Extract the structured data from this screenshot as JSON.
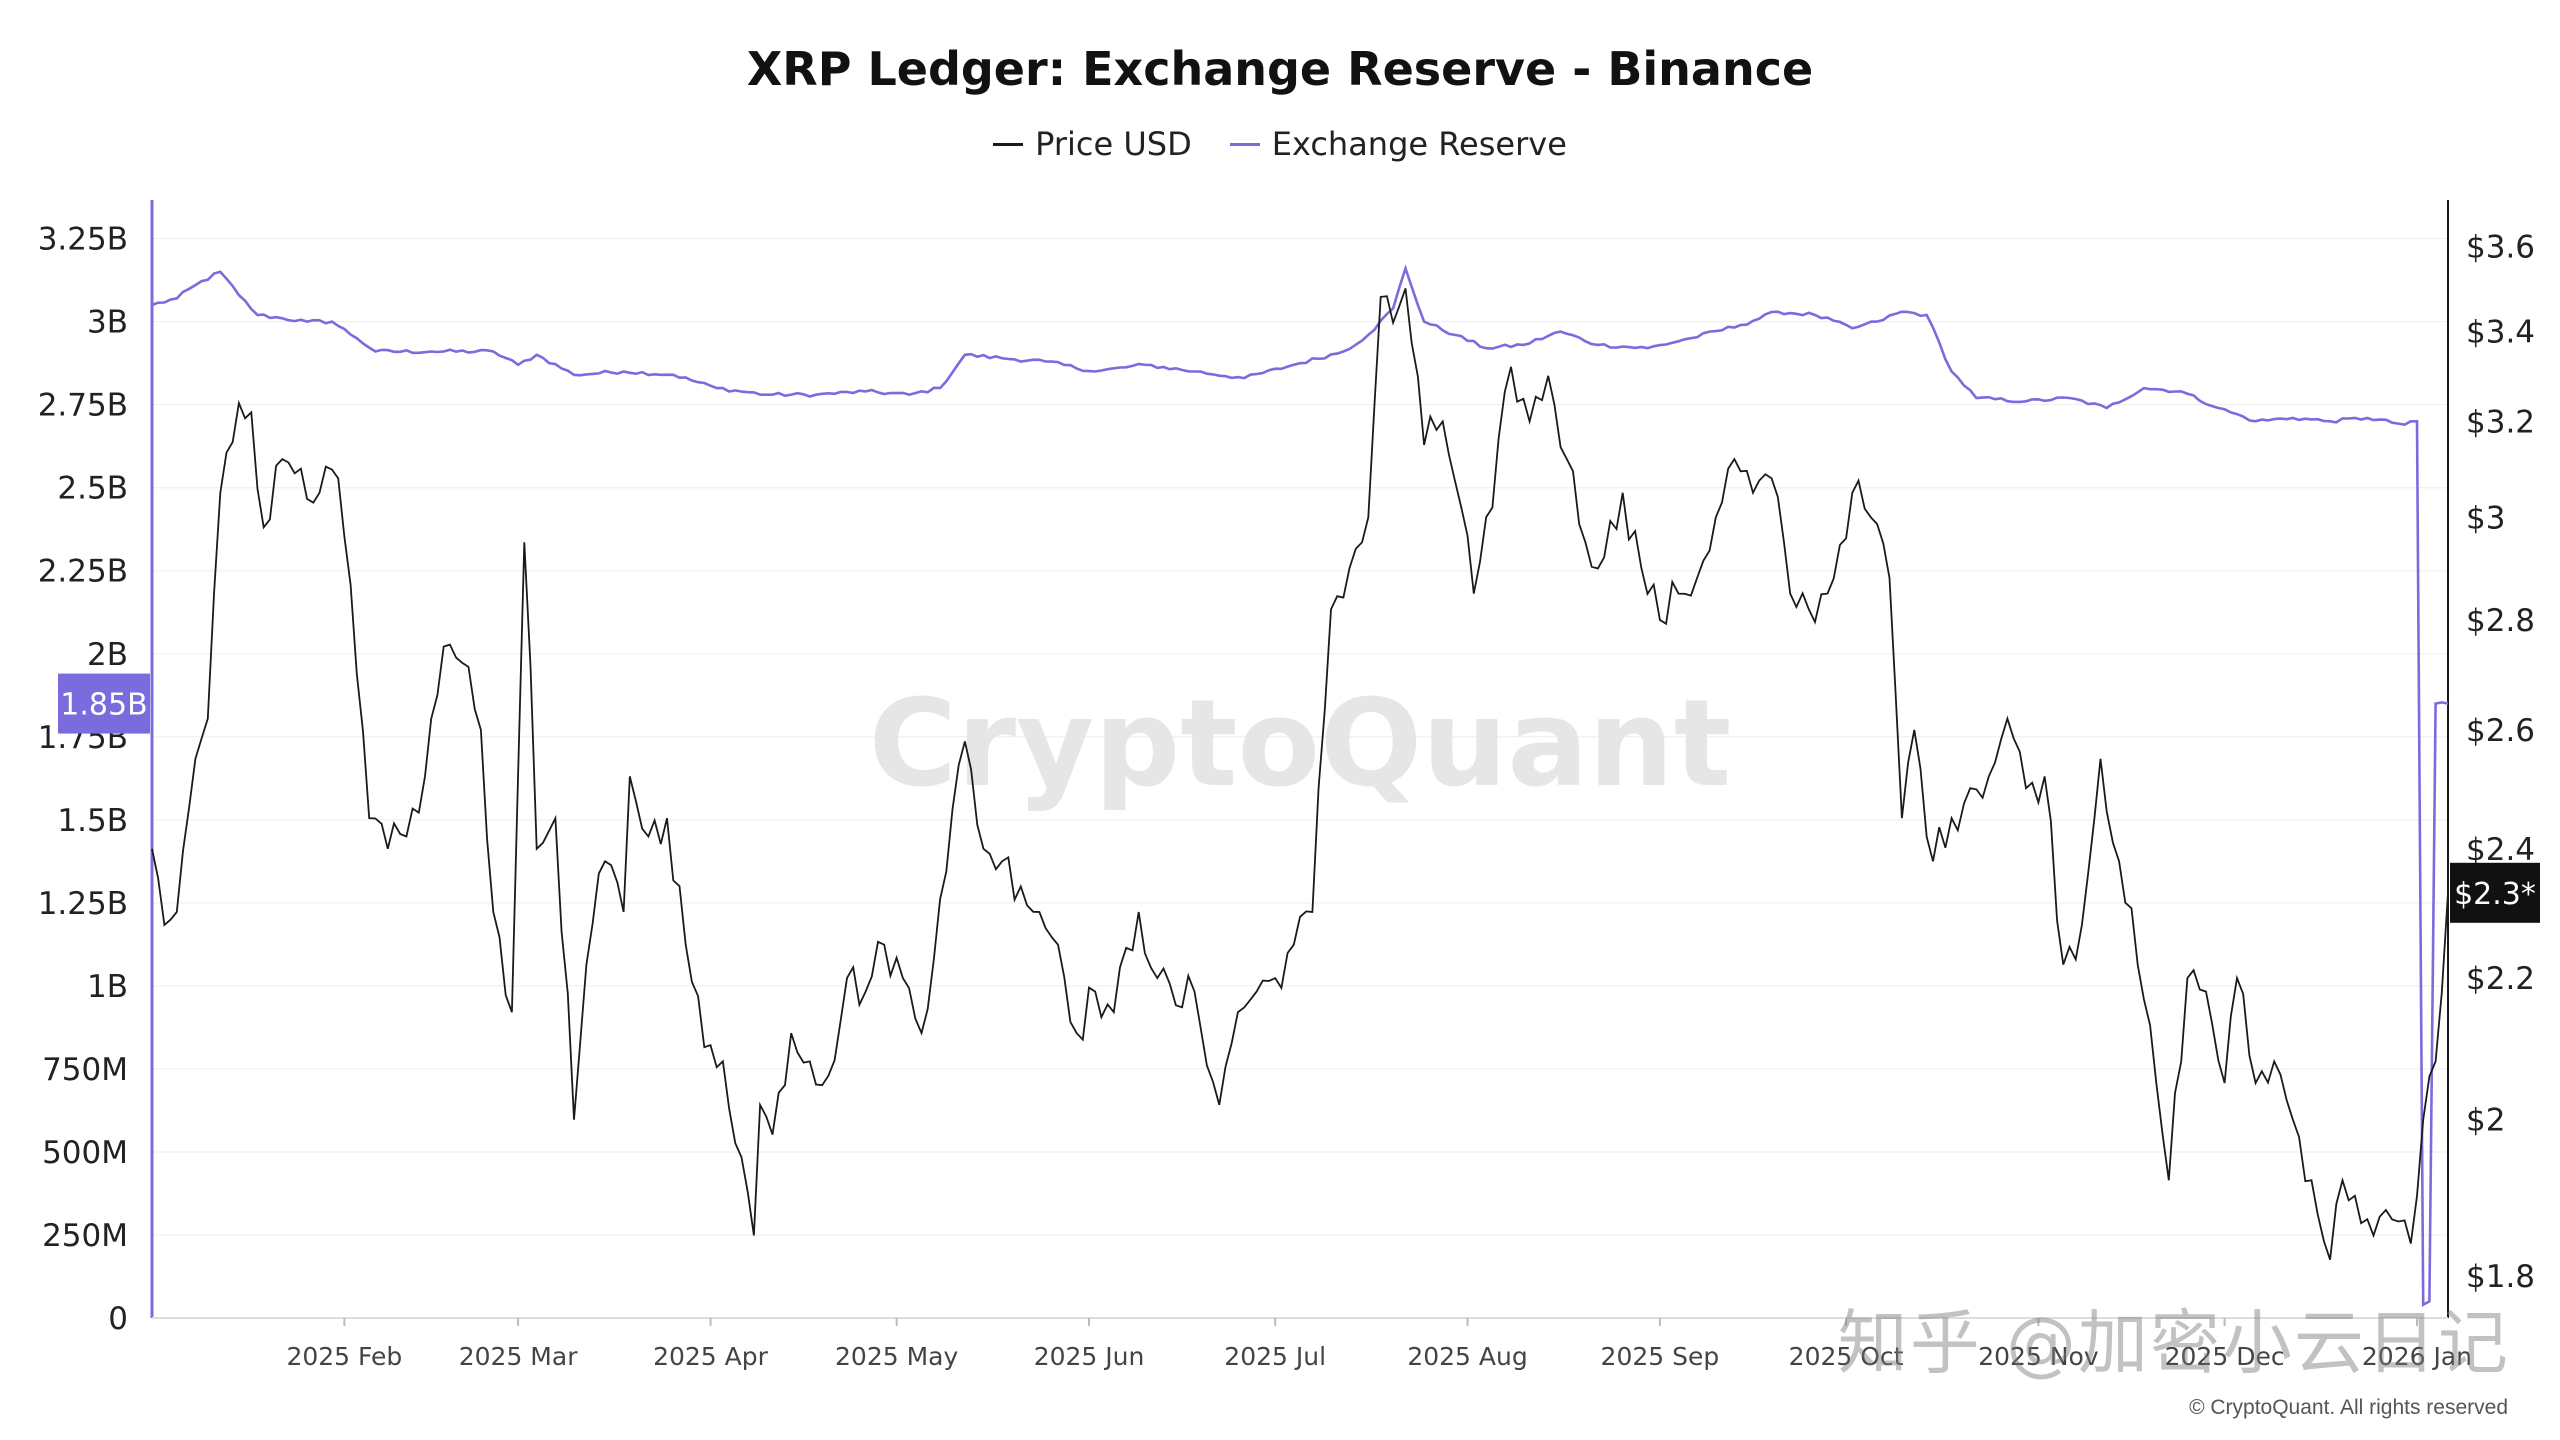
{
  "chart_data": {
    "type": "line",
    "title": "XRP Ledger: Exchange Reserve - Binance",
    "watermark": "CryptoQuant",
    "copyright": "© CryptoQuant. All rights reserved",
    "overlay_watermark": "知乎 @加密小云日记",
    "grid": true,
    "legend_position": "top-center",
    "series": [
      {
        "name": "Price USD",
        "color": "#1a1a1a",
        "axis": "right",
        "current_label": "$2.3*",
        "anchors": [
          {
            "x": "2025-01-01",
            "y": 2.4
          },
          {
            "x": "2025-01-03",
            "y": 2.28
          },
          {
            "x": "2025-01-05",
            "y": 2.3
          },
          {
            "x": "2025-01-08",
            "y": 2.55
          },
          {
            "x": "2025-01-10",
            "y": 2.62
          },
          {
            "x": "2025-01-12",
            "y": 3.05
          },
          {
            "x": "2025-01-15",
            "y": 3.24
          },
          {
            "x": "2025-01-17",
            "y": 3.22
          },
          {
            "x": "2025-01-19",
            "y": 2.98
          },
          {
            "x": "2025-01-22",
            "y": 3.12
          },
          {
            "x": "2025-01-25",
            "y": 3.1
          },
          {
            "x": "2025-01-28",
            "y": 3.05
          },
          {
            "x": "2025-01-31",
            "y": 3.08
          },
          {
            "x": "2025-02-03",
            "y": 2.7
          },
          {
            "x": "2025-02-05",
            "y": 2.45
          },
          {
            "x": "2025-02-08",
            "y": 2.4
          },
          {
            "x": "2025-02-11",
            "y": 2.42
          },
          {
            "x": "2025-02-14",
            "y": 2.52
          },
          {
            "x": "2025-02-17",
            "y": 2.75
          },
          {
            "x": "2025-02-20",
            "y": 2.72
          },
          {
            "x": "2025-02-23",
            "y": 2.6
          },
          {
            "x": "2025-02-25",
            "y": 2.3
          },
          {
            "x": "2025-02-28",
            "y": 2.15
          },
          {
            "x": "2025-03-02",
            "y": 2.95
          },
          {
            "x": "2025-03-04",
            "y": 2.4
          },
          {
            "x": "2025-03-07",
            "y": 2.45
          },
          {
            "x": "2025-03-10",
            "y": 2.0
          },
          {
            "x": "2025-03-12",
            "y": 2.22
          },
          {
            "x": "2025-03-15",
            "y": 2.38
          },
          {
            "x": "2025-03-18",
            "y": 2.3
          },
          {
            "x": "2025-03-19",
            "y": 2.52
          },
          {
            "x": "2025-03-22",
            "y": 2.42
          },
          {
            "x": "2025-03-25",
            "y": 2.45
          },
          {
            "x": "2025-03-28",
            "y": 2.25
          },
          {
            "x": "2025-03-31",
            "y": 2.1
          },
          {
            "x": "2025-04-03",
            "y": 2.08
          },
          {
            "x": "2025-04-06",
            "y": 1.95
          },
          {
            "x": "2025-04-08",
            "y": 1.85
          },
          {
            "x": "2025-04-09",
            "y": 2.02
          },
          {
            "x": "2025-04-11",
            "y": 1.98
          },
          {
            "x": "2025-04-14",
            "y": 2.12
          },
          {
            "x": "2025-04-17",
            "y": 2.08
          },
          {
            "x": "2025-04-20",
            "y": 2.06
          },
          {
            "x": "2025-04-23",
            "y": 2.2
          },
          {
            "x": "2025-04-26",
            "y": 2.18
          },
          {
            "x": "2025-04-29",
            "y": 2.25
          },
          {
            "x": "2025-05-02",
            "y": 2.2
          },
          {
            "x": "2025-05-05",
            "y": 2.12
          },
          {
            "x": "2025-05-08",
            "y": 2.32
          },
          {
            "x": "2025-05-12",
            "y": 2.58
          },
          {
            "x": "2025-05-15",
            "y": 2.4
          },
          {
            "x": "2025-05-18",
            "y": 2.38
          },
          {
            "x": "2025-05-21",
            "y": 2.34
          },
          {
            "x": "2025-05-24",
            "y": 2.3
          },
          {
            "x": "2025-05-27",
            "y": 2.25
          },
          {
            "x": "2025-05-30",
            "y": 2.12
          },
          {
            "x": "2025-06-02",
            "y": 2.18
          },
          {
            "x": "2025-06-05",
            "y": 2.15
          },
          {
            "x": "2025-06-09",
            "y": 2.3
          },
          {
            "x": "2025-06-12",
            "y": 2.2
          },
          {
            "x": "2025-06-15",
            "y": 2.16
          },
          {
            "x": "2025-06-18",
            "y": 2.18
          },
          {
            "x": "2025-06-22",
            "y": 2.02
          },
          {
            "x": "2025-06-25",
            "y": 2.15
          },
          {
            "x": "2025-06-28",
            "y": 2.18
          },
          {
            "x": "2025-07-01",
            "y": 2.2
          },
          {
            "x": "2025-07-04",
            "y": 2.25
          },
          {
            "x": "2025-07-07",
            "y": 2.3
          },
          {
            "x": "2025-07-10",
            "y": 2.82
          },
          {
            "x": "2025-07-13",
            "y": 2.9
          },
          {
            "x": "2025-07-16",
            "y": 3.0
          },
          {
            "x": "2025-07-18",
            "y": 3.48
          },
          {
            "x": "2025-07-20",
            "y": 3.42
          },
          {
            "x": "2025-07-22",
            "y": 3.5
          },
          {
            "x": "2025-07-25",
            "y": 3.15
          },
          {
            "x": "2025-07-28",
            "y": 3.2
          },
          {
            "x": "2025-07-31",
            "y": 3.02
          },
          {
            "x": "2025-08-02",
            "y": 2.85
          },
          {
            "x": "2025-08-05",
            "y": 3.02
          },
          {
            "x": "2025-08-08",
            "y": 3.32
          },
          {
            "x": "2025-08-11",
            "y": 3.2
          },
          {
            "x": "2025-08-14",
            "y": 3.3
          },
          {
            "x": "2025-08-17",
            "y": 3.12
          },
          {
            "x": "2025-08-20",
            "y": 2.95
          },
          {
            "x": "2025-08-23",
            "y": 2.92
          },
          {
            "x": "2025-08-26",
            "y": 3.05
          },
          {
            "x": "2025-08-29",
            "y": 2.9
          },
          {
            "x": "2025-09-01",
            "y": 2.8
          },
          {
            "x": "2025-09-04",
            "y": 2.85
          },
          {
            "x": "2025-09-07",
            "y": 2.88
          },
          {
            "x": "2025-09-10",
            "y": 3.0
          },
          {
            "x": "2025-09-13",
            "y": 3.12
          },
          {
            "x": "2025-09-16",
            "y": 3.05
          },
          {
            "x": "2025-09-19",
            "y": 3.08
          },
          {
            "x": "2025-09-22",
            "y": 2.85
          },
          {
            "x": "2025-09-25",
            "y": 2.82
          },
          {
            "x": "2025-09-28",
            "y": 2.85
          },
          {
            "x": "2025-10-02",
            "y": 3.05
          },
          {
            "x": "2025-10-05",
            "y": 3.0
          },
          {
            "x": "2025-10-08",
            "y": 2.88
          },
          {
            "x": "2025-10-10",
            "y": 2.45
          },
          {
            "x": "2025-10-12",
            "y": 2.6
          },
          {
            "x": "2025-10-15",
            "y": 2.38
          },
          {
            "x": "2025-10-18",
            "y": 2.45
          },
          {
            "x": "2025-10-21",
            "y": 2.5
          },
          {
            "x": "2025-10-24",
            "y": 2.52
          },
          {
            "x": "2025-10-27",
            "y": 2.62
          },
          {
            "x": "2025-10-30",
            "y": 2.5
          },
          {
            "x": "2025-11-02",
            "y": 2.52
          },
          {
            "x": "2025-11-05",
            "y": 2.22
          },
          {
            "x": "2025-11-08",
            "y": 2.28
          },
          {
            "x": "2025-11-11",
            "y": 2.55
          },
          {
            "x": "2025-11-14",
            "y": 2.38
          },
          {
            "x": "2025-11-17",
            "y": 2.22
          },
          {
            "x": "2025-11-20",
            "y": 2.05
          },
          {
            "x": "2025-11-22",
            "y": 1.92
          },
          {
            "x": "2025-11-25",
            "y": 2.2
          },
          {
            "x": "2025-11-28",
            "y": 2.18
          },
          {
            "x": "2025-12-01",
            "y": 2.05
          },
          {
            "x": "2025-12-03",
            "y": 2.2
          },
          {
            "x": "2025-12-06",
            "y": 2.05
          },
          {
            "x": "2025-12-09",
            "y": 2.08
          },
          {
            "x": "2025-12-12",
            "y": 2.0
          },
          {
            "x": "2025-12-15",
            "y": 1.92
          },
          {
            "x": "2025-12-18",
            "y": 1.82
          },
          {
            "x": "2025-12-20",
            "y": 1.92
          },
          {
            "x": "2025-12-22",
            "y": 1.9
          },
          {
            "x": "2025-12-25",
            "y": 1.85
          },
          {
            "x": "2025-12-28",
            "y": 1.87
          },
          {
            "x": "2025-12-31",
            "y": 1.84
          },
          {
            "x": "2026-01-02",
            "y": 2.0
          },
          {
            "x": "2026-01-04",
            "y": 2.08
          },
          {
            "x": "2026-01-06",
            "y": 2.33
          }
        ]
      },
      {
        "name": "Exchange Reserve",
        "color": "#7b6cde",
        "axis": "left",
        "current_label": "1.85B",
        "anchors": [
          {
            "x": "2025-01-01",
            "y": 3050000000
          },
          {
            "x": "2025-01-05",
            "y": 3070000000
          },
          {
            "x": "2025-01-08",
            "y": 3110000000
          },
          {
            "x": "2025-01-12",
            "y": 3150000000
          },
          {
            "x": "2025-01-15",
            "y": 3080000000
          },
          {
            "x": "2025-01-18",
            "y": 3020000000
          },
          {
            "x": "2025-01-22",
            "y": 3010000000
          },
          {
            "x": "2025-01-26",
            "y": 3000000000
          },
          {
            "x": "2025-01-30",
            "y": 3000000000
          },
          {
            "x": "2025-02-03",
            "y": 2950000000
          },
          {
            "x": "2025-02-06",
            "y": 2910000000
          },
          {
            "x": "2025-02-15",
            "y": 2910000000
          },
          {
            "x": "2025-02-25",
            "y": 2910000000
          },
          {
            "x": "2025-03-01",
            "y": 2870000000
          },
          {
            "x": "2025-03-04",
            "y": 2900000000
          },
          {
            "x": "2025-03-10",
            "y": 2840000000
          },
          {
            "x": "2025-03-18",
            "y": 2850000000
          },
          {
            "x": "2025-03-26",
            "y": 2840000000
          },
          {
            "x": "2025-04-02",
            "y": 2800000000
          },
          {
            "x": "2025-04-10",
            "y": 2780000000
          },
          {
            "x": "2025-04-18",
            "y": 2780000000
          },
          {
            "x": "2025-04-26",
            "y": 2790000000
          },
          {
            "x": "2025-05-03",
            "y": 2780000000
          },
          {
            "x": "2025-05-08",
            "y": 2800000000
          },
          {
            "x": "2025-05-12",
            "y": 2900000000
          },
          {
            "x": "2025-05-18",
            "y": 2890000000
          },
          {
            "x": "2025-05-25",
            "y": 2880000000
          },
          {
            "x": "2025-06-02",
            "y": 2850000000
          },
          {
            "x": "2025-06-10",
            "y": 2870000000
          },
          {
            "x": "2025-06-18",
            "y": 2850000000
          },
          {
            "x": "2025-06-26",
            "y": 2830000000
          },
          {
            "x": "2025-07-04",
            "y": 2870000000
          },
          {
            "x": "2025-07-12",
            "y": 2910000000
          },
          {
            "x": "2025-07-16",
            "y": 2960000000
          },
          {
            "x": "2025-07-20",
            "y": 3040000000
          },
          {
            "x": "2025-07-22",
            "y": 3160000000
          },
          {
            "x": "2025-07-25",
            "y": 3000000000
          },
          {
            "x": "2025-07-30",
            "y": 2960000000
          },
          {
            "x": "2025-08-04",
            "y": 2920000000
          },
          {
            "x": "2025-08-10",
            "y": 2930000000
          },
          {
            "x": "2025-08-16",
            "y": 2970000000
          },
          {
            "x": "2025-08-22",
            "y": 2930000000
          },
          {
            "x": "2025-08-30",
            "y": 2920000000
          },
          {
            "x": "2025-09-06",
            "y": 2950000000
          },
          {
            "x": "2025-09-14",
            "y": 2990000000
          },
          {
            "x": "2025-09-20",
            "y": 3030000000
          },
          {
            "x": "2025-09-26",
            "y": 3020000000
          },
          {
            "x": "2025-10-02",
            "y": 2980000000
          },
          {
            "x": "2025-10-06",
            "y": 3000000000
          },
          {
            "x": "2025-10-10",
            "y": 3030000000
          },
          {
            "x": "2025-10-14",
            "y": 3020000000
          },
          {
            "x": "2025-10-18",
            "y": 2850000000
          },
          {
            "x": "2025-10-22",
            "y": 2770000000
          },
          {
            "x": "2025-10-30",
            "y": 2760000000
          },
          {
            "x": "2025-11-06",
            "y": 2770000000
          },
          {
            "x": "2025-11-12",
            "y": 2740000000
          },
          {
            "x": "2025-11-18",
            "y": 2800000000
          },
          {
            "x": "2025-11-24",
            "y": 2790000000
          },
          {
            "x": "2025-11-30",
            "y": 2740000000
          },
          {
            "x": "2025-12-06",
            "y": 2700000000
          },
          {
            "x": "2025-12-12",
            "y": 2710000000
          },
          {
            "x": "2025-12-18",
            "y": 2700000000
          },
          {
            "x": "2025-12-24",
            "y": 2710000000
          },
          {
            "x": "2025-12-30",
            "y": 2690000000
          },
          {
            "x": "2025-12-31",
            "y": 2700000000
          },
          {
            "x": "2026-01-01",
            "y": 2700000000
          },
          {
            "x": "2026-01-02",
            "y": 40000000
          },
          {
            "x": "2026-01-03",
            "y": 50000000
          },
          {
            "x": "2026-01-04",
            "y": 1850000000
          },
          {
            "x": "2026-01-06",
            "y": 1850000000
          }
        ]
      }
    ],
    "x_axis": {
      "type": "date",
      "range": [
        "2025-01-01",
        "2026-01-06"
      ],
      "ticks": [
        {
          "date": "2025-02-01",
          "label": "2025 Feb"
        },
        {
          "date": "2025-03-01",
          "label": "2025 Mar"
        },
        {
          "date": "2025-04-01",
          "label": "2025 Apr"
        },
        {
          "date": "2025-05-01",
          "label": "2025 May"
        },
        {
          "date": "2025-06-01",
          "label": "2025 Jun"
        },
        {
          "date": "2025-07-01",
          "label": "2025 Jul"
        },
        {
          "date": "2025-08-01",
          "label": "2025 Aug"
        },
        {
          "date": "2025-09-01",
          "label": "2025 Sep"
        },
        {
          "date": "2025-10-01",
          "label": "2025 Oct"
        },
        {
          "date": "2025-11-01",
          "label": "2025 Nov"
        },
        {
          "date": "2025-12-01",
          "label": "2025 Dec"
        },
        {
          "date": "2026-01-01",
          "label": "2026 Jan"
        }
      ]
    },
    "y_left": {
      "range": [
        0,
        3300000000
      ],
      "ticks": [
        {
          "v": 0,
          "label": "0"
        },
        {
          "v": 250000000,
          "label": "250M"
        },
        {
          "v": 500000000,
          "label": "500M"
        },
        {
          "v": 750000000,
          "label": "750M"
        },
        {
          "v": 1000000000,
          "label": "1B"
        },
        {
          "v": 1250000000,
          "label": "1.25B"
        },
        {
          "v": 1500000000,
          "label": "1.5B"
        },
        {
          "v": 1750000000,
          "label": "1.75B"
        },
        {
          "v": 2000000000,
          "label": "2B"
        },
        {
          "v": 2250000000,
          "label": "2.25B"
        },
        {
          "v": 2500000000,
          "label": "2.5B"
        },
        {
          "v": 2750000000,
          "label": "2.75B"
        },
        {
          "v": 3000000000,
          "label": "3B"
        },
        {
          "v": 3250000000,
          "label": "3.25B"
        }
      ]
    },
    "y_right": {
      "scale": "log",
      "range": [
        1.75,
        3.66
      ],
      "ticks": [
        {
          "v": 1.8,
          "label": "$1.8"
        },
        {
          "v": 2.0,
          "label": "$2"
        },
        {
          "v": 2.2,
          "label": "$2.2"
        },
        {
          "v": 2.4,
          "label": "$2.4"
        },
        {
          "v": 2.6,
          "label": "$2.6"
        },
        {
          "v": 2.8,
          "label": "$2.8"
        },
        {
          "v": 3.0,
          "label": "$3"
        },
        {
          "v": 3.2,
          "label": "$3.2"
        },
        {
          "v": 3.4,
          "label": "$3.4"
        },
        {
          "v": 3.6,
          "label": "$3.6"
        }
      ]
    }
  }
}
